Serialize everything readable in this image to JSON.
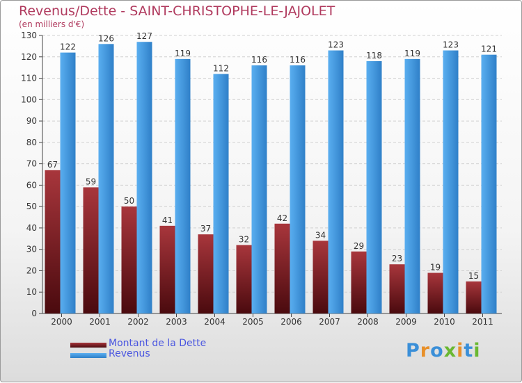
{
  "title": "Revenus/Dette - SAINT-CHRISTOPHE-LE-JAJOLET",
  "subtitle": "(en milliers d'€)",
  "logo": {
    "text": "Proxiti",
    "colors": [
      "#3a8fd8",
      "#e8902a",
      "#3a8fd8",
      "#6ab832",
      "#e8902a",
      "#3a8fd8",
      "#6ab832"
    ]
  },
  "chart_data": {
    "type": "bar",
    "categories": [
      "2000",
      "2001",
      "2002",
      "2003",
      "2004",
      "2005",
      "2006",
      "2007",
      "2008",
      "2009",
      "2010",
      "2011"
    ],
    "series": [
      {
        "name": "Montant de la Dette",
        "color": "#7a1f24",
        "values": [
          67,
          59,
          50,
          41,
          37,
          32,
          42,
          34,
          29,
          23,
          19,
          15
        ]
      },
      {
        "name": "Revenus",
        "color": "#4a9fe0",
        "values": [
          122,
          126,
          127,
          119,
          112,
          116,
          116,
          123,
          118,
          119,
          123,
          121
        ]
      }
    ],
    "ylim": [
      0,
      130
    ],
    "yticks": [
      0,
      10,
      20,
      30,
      40,
      50,
      60,
      70,
      80,
      90,
      100,
      110,
      120,
      130
    ],
    "grid": true,
    "legend": "bottom-left"
  }
}
